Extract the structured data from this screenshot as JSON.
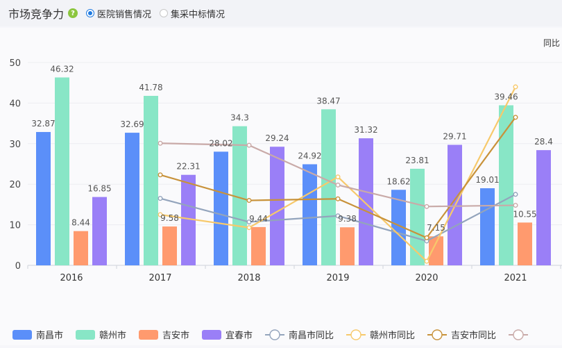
{
  "header": {
    "title": "市场竞争力",
    "help_icon": "question-icon",
    "radio_options": [
      {
        "label": "医院销售情况",
        "checked": true
      },
      {
        "label": "集采中标情况",
        "checked": false
      }
    ]
  },
  "chart_data": {
    "type": "bar",
    "categories": [
      "2016",
      "2017",
      "2018",
      "2019",
      "2020",
      "2021"
    ],
    "ylim": [
      0,
      50
    ],
    "yticks": [
      0,
      10,
      20,
      30,
      40,
      50
    ],
    "right_axis_label": "同比",
    "series": [
      {
        "name": "南昌市",
        "type": "bar",
        "color": "#5b8ff9",
        "values": [
          32.87,
          32.69,
          28.02,
          24.92,
          18.62,
          19.01
        ]
      },
      {
        "name": "赣州市",
        "type": "bar",
        "color": "#88e6c6",
        "values": [
          46.32,
          41.78,
          34.3,
          38.47,
          23.81,
          39.46
        ]
      },
      {
        "name": "吉安市",
        "type": "bar",
        "color": "#ff9a6e",
        "values": [
          8.44,
          9.58,
          9.44,
          9.38,
          7.15,
          10.55
        ]
      },
      {
        "name": "宜春市",
        "type": "bar",
        "color": "#9a7ff7",
        "values": [
          16.85,
          22.31,
          29.24,
          31.32,
          29.71,
          28.4
        ]
      },
      {
        "name": "南昌市同比",
        "type": "line",
        "color": "#93a4bc",
        "values": [
          null,
          16.5,
          10.7,
          12.2,
          6.0,
          17.5
        ]
      },
      {
        "name": "赣州市同比",
        "type": "line",
        "color": "#f7c96b",
        "values": [
          null,
          12.5,
          9.3,
          21.8,
          1.0,
          44.0
        ]
      },
      {
        "name": "吉安市同比",
        "type": "line",
        "color": "#c8923a",
        "values": [
          null,
          22.3,
          16.0,
          16.4,
          6.8,
          36.5
        ]
      },
      {
        "name": "",
        "type": "line",
        "color": "#c9aaa8",
        "values": [
          null,
          30.1,
          29.6,
          19.8,
          14.5,
          14.8
        ]
      }
    ]
  }
}
